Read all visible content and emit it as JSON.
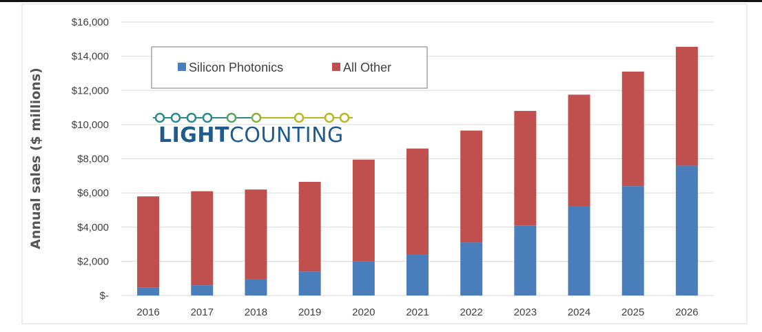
{
  "chart_data": {
    "type": "bar",
    "stacked": true,
    "categories": [
      "2016",
      "2017",
      "2018",
      "2019",
      "2020",
      "2021",
      "2022",
      "2023",
      "2024",
      "2025",
      "2026"
    ],
    "series": [
      {
        "name": "Silicon Photonics",
        "color": "#4a7ebb",
        "values": [
          450,
          600,
          950,
          1400,
          2000,
          2400,
          3100,
          4100,
          5200,
          6400,
          7600
        ]
      },
      {
        "name": "All Other",
        "color": "#c0504d",
        "values": [
          5350,
          5500,
          5250,
          5250,
          5950,
          6200,
          6550,
          6700,
          6550,
          6700,
          6950
        ]
      }
    ],
    "ylabel": "Annual sales ($ millions)",
    "ylim": [
      0,
      16000
    ],
    "yticks": [
      {
        "value": 0,
        "label": "$-"
      },
      {
        "value": 2000,
        "label": "$2,000"
      },
      {
        "value": 4000,
        "label": "$4,000"
      },
      {
        "value": 6000,
        "label": "$6,000"
      },
      {
        "value": 8000,
        "label": "$8,000"
      },
      {
        "value": 10000,
        "label": "$10,000"
      },
      {
        "value": 12000,
        "label": "$12,000"
      },
      {
        "value": 14000,
        "label": "$14,000"
      },
      {
        "value": 16000,
        "label": "$16,000"
      }
    ],
    "grid": true,
    "legend": "top-left"
  },
  "logo": {
    "text": "LIGHTCOUNTING",
    "bold_part": "LIGHT",
    "rest_part": "COUNTING",
    "dot_color": "#2a8a8a",
    "dot_color_alt": "#b5b820"
  }
}
